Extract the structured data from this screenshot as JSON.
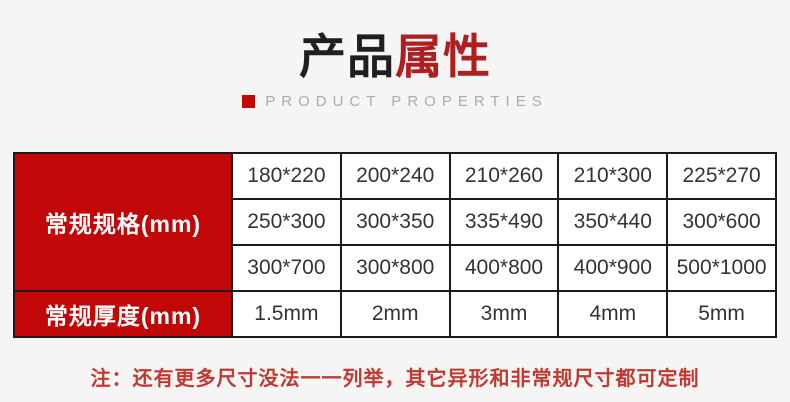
{
  "header": {
    "title_black": "产品",
    "title_red": "属性",
    "subtitle": "PRODUCT PROPERTIES"
  },
  "colors": {
    "page_bg": "#f5f5f5",
    "title_black": "#1f1f1f",
    "title_red": "#ae1f22",
    "table_header_red": "#c10708",
    "table_border": "#1b1b1b",
    "note_red": "#c23931",
    "subtitle_gray": "#ababab"
  },
  "table": {
    "row_headers": [
      {
        "label": "常规规格(mm)"
      },
      {
        "label": "常规厚度(mm)"
      }
    ],
    "spec_rows": [
      [
        "180*220",
        "200*240",
        "210*260",
        "210*300",
        "225*270"
      ],
      [
        "250*300",
        "300*350",
        "335*490",
        "350*440",
        "300*600"
      ],
      [
        "300*700",
        "300*800",
        "400*800",
        "400*900",
        "500*1000"
      ]
    ],
    "thickness_row": [
      "1.5mm",
      "2mm",
      "3mm",
      "4mm",
      "5mm"
    ]
  },
  "note": {
    "text": "注：还有更多尺寸没法一一列举，其它异形和非常规尺寸都可定制"
  }
}
